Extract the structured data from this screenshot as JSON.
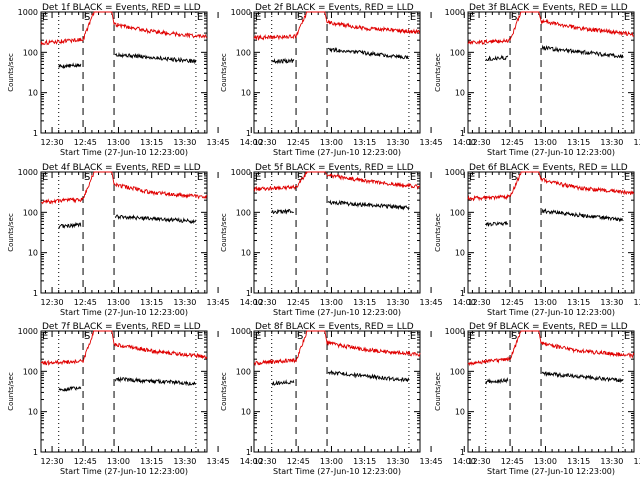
{
  "colors": {
    "events": "#000000",
    "lld": "#e00000",
    "axis": "#000000",
    "background": "#ffffff"
  },
  "common": {
    "xlabel": "Start Time (27-Jun-10 12:23:00)",
    "ylabel": "Counts/sec",
    "x_tick_labels": [
      "12:30",
      "12:45",
      "13:00",
      "13:15",
      "13:30",
      "13:45",
      "14:00"
    ],
    "y_tick_labels": [
      "1",
      "10",
      "100",
      "1000"
    ],
    "markers": {
      "left_E": "E",
      "S": "S",
      "right_E": "E"
    }
  },
  "chart_data": [
    {
      "type": "line",
      "title": "Det 1f BLACK = Events, RED = LLD",
      "xlim_min": [
        25,
        100
      ],
      "ylim": [
        1,
        1000
      ],
      "y_scale": "log",
      "dotted_lines_min": [
        33,
        95
      ],
      "dashed_lines_min": [
        44,
        58
      ],
      "gap_min": [
        49,
        58
      ],
      "series": [
        {
          "color": "black",
          "points_min_value": [
            [
              33,
              45
            ],
            [
              44,
              48
            ],
            [
              58,
              90
            ],
            [
              95,
              60
            ]
          ]
        },
        {
          "color": "red",
          "points_min_value": [
            [
              25,
              170
            ],
            [
              44,
              210
            ],
            [
              49,
              1000
            ],
            [
              57,
              1000
            ],
            [
              58,
              500
            ],
            [
              75,
              330
            ],
            [
              100,
              240
            ]
          ]
        }
      ]
    },
    {
      "type": "line",
      "title": "Det 2f BLACK = Events, RED = LLD",
      "xlim_min": [
        25,
        100
      ],
      "ylim": [
        1,
        1000
      ],
      "y_scale": "log",
      "dotted_lines_min": [
        33,
        95
      ],
      "dashed_lines_min": [
        44,
        58
      ],
      "gap_min": [
        49,
        58
      ],
      "series": [
        {
          "color": "black",
          "points_min_value": [
            [
              33,
              60
            ],
            [
              44,
              62
            ],
            [
              58,
              120
            ],
            [
              95,
              75
            ]
          ]
        },
        {
          "color": "red",
          "points_min_value": [
            [
              25,
              230
            ],
            [
              44,
              250
            ],
            [
              49,
              1000
            ],
            [
              57,
              1000
            ],
            [
              58,
              550
            ],
            [
              75,
              400
            ],
            [
              100,
              320
            ]
          ]
        }
      ]
    },
    {
      "type": "line",
      "title": "Det 3f BLACK = Events, RED = LLD",
      "xlim_min": [
        25,
        100
      ],
      "ylim": [
        1,
        1000
      ],
      "y_scale": "log",
      "dotted_lines_min": [
        33,
        95
      ],
      "dashed_lines_min": [
        44,
        58
      ],
      "gap_min": [
        49,
        58
      ],
      "series": [
        {
          "color": "black",
          "points_min_value": [
            [
              33,
              70
            ],
            [
              44,
              75
            ],
            [
              58,
              130
            ],
            [
              95,
              80
            ]
          ]
        },
        {
          "color": "red",
          "points_min_value": [
            [
              25,
              170
            ],
            [
              44,
              200
            ],
            [
              49,
              1000
            ],
            [
              57,
              1000
            ],
            [
              58,
              600
            ],
            [
              75,
              400
            ],
            [
              100,
              280
            ]
          ]
        }
      ]
    },
    {
      "type": "line",
      "title": "Det 4f BLACK = Events, RED = LLD",
      "xlim_min": [
        25,
        100
      ],
      "ylim": [
        1,
        1000
      ],
      "y_scale": "log",
      "dotted_lines_min": [
        33,
        95
      ],
      "dashed_lines_min": [
        44,
        58
      ],
      "gap_min": [
        49,
        58
      ],
      "series": [
        {
          "color": "black",
          "points_min_value": [
            [
              33,
              45
            ],
            [
              44,
              50
            ],
            [
              58,
              80
            ],
            [
              95,
              60
            ]
          ]
        },
        {
          "color": "red",
          "points_min_value": [
            [
              25,
              180
            ],
            [
              44,
              210
            ],
            [
              49,
              1000
            ],
            [
              57,
              1000
            ],
            [
              58,
              500
            ],
            [
              75,
              310
            ],
            [
              100,
              240
            ]
          ]
        }
      ]
    },
    {
      "type": "line",
      "title": "Det 5f BLACK = Events, RED = LLD",
      "xlim_min": [
        25,
        100
      ],
      "ylim": [
        1,
        1000
      ],
      "y_scale": "log",
      "dotted_lines_min": [
        33,
        95
      ],
      "dashed_lines_min": [
        44,
        58
      ],
      "gap_min": [
        49,
        58
      ],
      "series": [
        {
          "color": "black",
          "points_min_value": [
            [
              33,
              100
            ],
            [
              44,
              110
            ],
            [
              58,
              180
            ],
            [
              95,
              130
            ]
          ]
        },
        {
          "color": "red",
          "points_min_value": [
            [
              25,
              380
            ],
            [
              44,
              420
            ],
            [
              49,
              1000
            ],
            [
              57,
              1000
            ],
            [
              58,
              850
            ],
            [
              75,
              600
            ],
            [
              100,
              430
            ]
          ]
        }
      ]
    },
    {
      "type": "line",
      "title": "Det 6f BLACK = Events, RED = LLD",
      "xlim_min": [
        25,
        100
      ],
      "ylim": [
        1,
        1000
      ],
      "y_scale": "log",
      "dotted_lines_min": [
        33,
        95
      ],
      "dashed_lines_min": [
        44,
        58
      ],
      "gap_min": [
        49,
        58
      ],
      "series": [
        {
          "color": "black",
          "points_min_value": [
            [
              33,
              50
            ],
            [
              44,
              55
            ],
            [
              58,
              110
            ],
            [
              95,
              65
            ]
          ]
        },
        {
          "color": "red",
          "points_min_value": [
            [
              25,
              220
            ],
            [
              44,
              240
            ],
            [
              49,
              1000
            ],
            [
              57,
              1000
            ],
            [
              58,
              650
            ],
            [
              75,
              400
            ],
            [
              100,
              300
            ]
          ]
        }
      ]
    },
    {
      "type": "line",
      "title": "Det 7f BLACK = Events, RED = LLD",
      "xlim_min": [
        25,
        100
      ],
      "ylim": [
        1,
        1000
      ],
      "y_scale": "log",
      "dotted_lines_min": [
        33,
        95
      ],
      "dashed_lines_min": [
        44,
        58
      ],
      "gap_min": [
        49,
        58
      ],
      "series": [
        {
          "color": "black",
          "points_min_value": [
            [
              33,
              35
            ],
            [
              44,
              40
            ],
            [
              58,
              65
            ],
            [
              95,
              50
            ]
          ]
        },
        {
          "color": "red",
          "points_min_value": [
            [
              25,
              160
            ],
            [
              44,
              180
            ],
            [
              49,
              1000
            ],
            [
              57,
              1000
            ],
            [
              58,
              480
            ],
            [
              75,
              320
            ],
            [
              100,
              230
            ]
          ]
        }
      ]
    },
    {
      "type": "line",
      "title": "Det 8f BLACK = Events, RED = LLD",
      "xlim_min": [
        25,
        100
      ],
      "ylim": [
        1,
        1000
      ],
      "y_scale": "log",
      "dotted_lines_min": [
        33,
        95
      ],
      "dashed_lines_min": [
        44,
        58
      ],
      "gap_min": [
        49,
        58
      ],
      "series": [
        {
          "color": "black",
          "points_min_value": [
            [
              33,
              50
            ],
            [
              44,
              55
            ],
            [
              58,
              95
            ],
            [
              95,
              60
            ]
          ]
        },
        {
          "color": "red",
          "points_min_value": [
            [
              25,
              160
            ],
            [
              44,
              190
            ],
            [
              49,
              1000
            ],
            [
              57,
              1000
            ],
            [
              58,
              500
            ],
            [
              75,
              350
            ],
            [
              100,
              260
            ]
          ]
        }
      ]
    },
    {
      "type": "line",
      "title": "Det 9f BLACK = Events, RED = LLD",
      "xlim_min": [
        25,
        100
      ],
      "ylim": [
        1,
        1000
      ],
      "y_scale": "log",
      "dotted_lines_min": [
        33,
        95
      ],
      "dashed_lines_min": [
        44,
        58
      ],
      "gap_min": [
        49,
        58
      ],
      "series": [
        {
          "color": "black",
          "points_min_value": [
            [
              33,
              55
            ],
            [
              44,
              60
            ],
            [
              58,
              90
            ],
            [
              95,
              60
            ]
          ]
        },
        {
          "color": "red",
          "points_min_value": [
            [
              25,
              160
            ],
            [
              44,
              200
            ],
            [
              49,
              1000
            ],
            [
              57,
              1000
            ],
            [
              58,
              500
            ],
            [
              75,
              320
            ],
            [
              100,
              250
            ]
          ]
        }
      ]
    }
  ]
}
